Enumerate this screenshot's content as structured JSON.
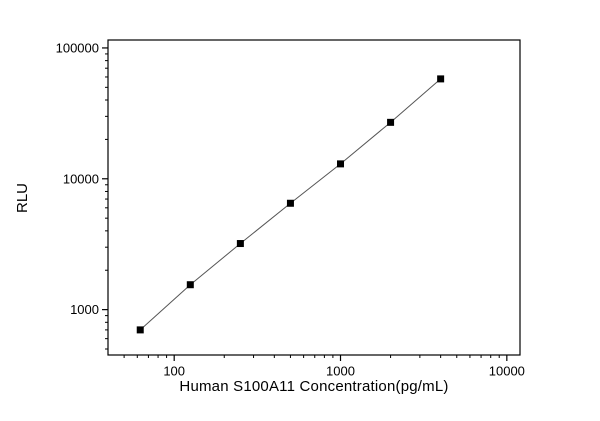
{
  "chart": {
    "xlabel": "Human S100A11 Concentration(pg/mL)",
    "ylabel": "RLU"
  },
  "chart_data": {
    "type": "scatter",
    "title": "",
    "xlabel": "Human S100A11 Concentration(pg/mL)",
    "ylabel": "RLU",
    "xscale": "log",
    "yscale": "log",
    "xlim": [
      40,
      12000
    ],
    "ylim": [
      450,
      115000
    ],
    "x_major_ticks": [
      100,
      1000,
      10000
    ],
    "y_major_ticks": [
      1000,
      10000,
      100000
    ],
    "x": [
      62.5,
      125,
      250,
      500,
      1000,
      2000,
      4000
    ],
    "y": [
      700,
      1550,
      3200,
      6500,
      13000,
      27000,
      58000
    ],
    "marker": "square",
    "marker_color": "#000000",
    "line_color": "#555555",
    "grid": false,
    "legend": false
  }
}
